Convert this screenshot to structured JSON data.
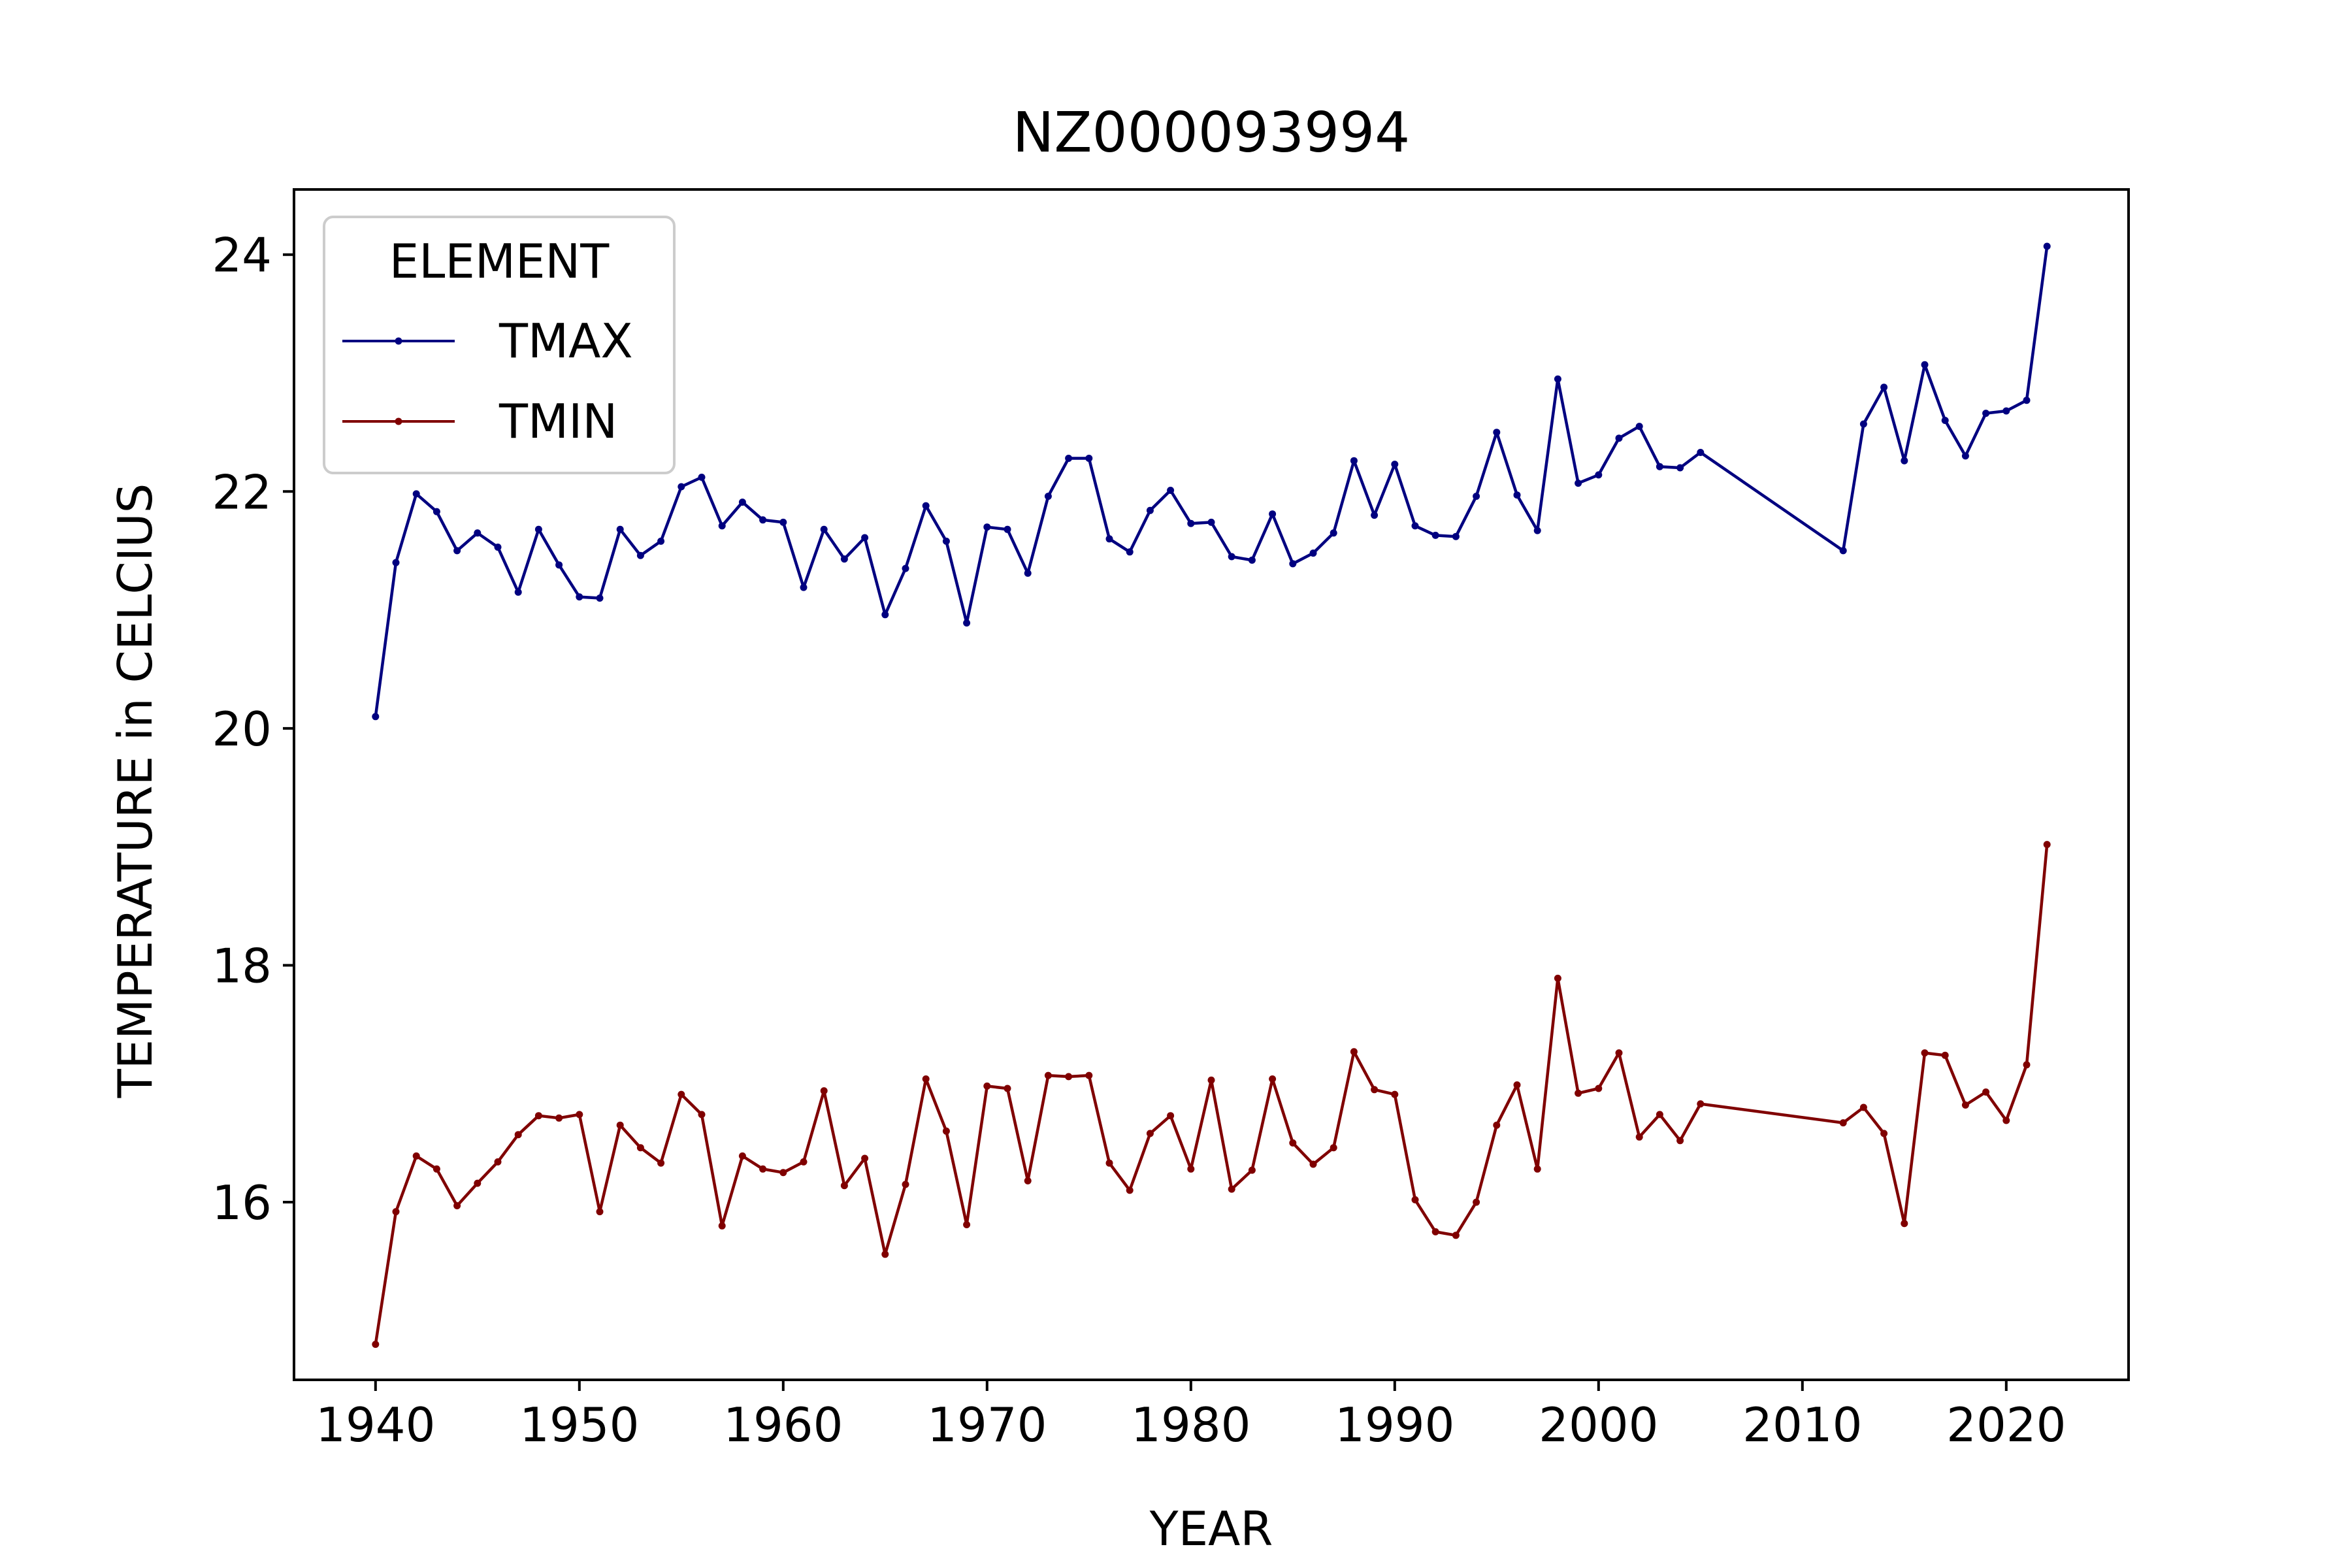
{
  "chart_data": {
    "type": "line",
    "title": "NZ000093994",
    "xlabel": "YEAR",
    "ylabel": "TEMPERATURE in CELCIUS",
    "xlim": [
      1936,
      2026
    ],
    "ylim": [
      14.5,
      24.55
    ],
    "xticks": [
      1940,
      1950,
      1960,
      1970,
      1980,
      1990,
      2000,
      2010,
      2020
    ],
    "yticks": [
      16,
      18,
      20,
      22,
      24
    ],
    "grid": false,
    "legend": {
      "title": "ELEMENT",
      "placement": "upper-left"
    },
    "x": [
      1940,
      1941,
      1942,
      1943,
      1944,
      1945,
      1946,
      1947,
      1948,
      1949,
      1950,
      1951,
      1952,
      1953,
      1954,
      1955,
      1956,
      1957,
      1958,
      1959,
      1960,
      1961,
      1962,
      1963,
      1964,
      1965,
      1966,
      1967,
      1968,
      1969,
      1970,
      1971,
      1972,
      1973,
      1974,
      1975,
      1976,
      1977,
      1978,
      1979,
      1980,
      1981,
      1982,
      1983,
      1984,
      1985,
      1986,
      1987,
      1988,
      1989,
      1990,
      1991,
      1992,
      1993,
      1994,
      1995,
      1996,
      1997,
      1998,
      1999,
      2000,
      2001,
      2002,
      2003,
      2004,
      2005,
      2012,
      2013,
      2014,
      2015,
      2016,
      2017,
      2018,
      2019,
      2020,
      2021,
      2022
    ],
    "series": [
      {
        "name": "TMAX",
        "color": "#000080",
        "values": [
          20.1,
          21.4,
          21.98,
          21.83,
          21.5,
          21.65,
          21.53,
          21.15,
          21.68,
          21.38,
          21.11,
          21.1,
          21.68,
          21.46,
          21.58,
          22.04,
          22.12,
          21.71,
          21.91,
          21.76,
          21.74,
          21.19,
          21.68,
          21.43,
          21.61,
          20.96,
          21.35,
          21.88,
          21.58,
          20.89,
          21.7,
          21.68,
          21.31,
          21.96,
          22.28,
          22.28,
          21.6,
          21.49,
          21.84,
          22.01,
          21.73,
          21.74,
          21.45,
          21.42,
          21.81,
          21.39,
          21.48,
          21.65,
          22.26,
          21.8,
          22.23,
          21.71,
          21.63,
          21.62,
          21.96,
          22.5,
          21.97,
          21.67,
          22.95,
          22.07,
          22.14,
          22.45,
          22.55,
          22.21,
          22.2,
          22.33,
          21.5,
          22.57,
          22.88,
          22.26,
          23.07,
          22.6,
          22.3,
          22.66,
          22.68,
          22.77,
          24.07
        ]
      },
      {
        "name": "TMIN",
        "color": "#800000",
        "values": [
          14.8,
          15.92,
          16.39,
          16.28,
          15.97,
          16.16,
          16.34,
          16.57,
          16.73,
          16.71,
          16.74,
          15.92,
          16.65,
          16.46,
          16.33,
          16.91,
          16.74,
          15.8,
          16.39,
          16.28,
          16.25,
          16.34,
          16.94,
          16.14,
          16.37,
          15.56,
          16.15,
          17.04,
          16.6,
          15.81,
          16.98,
          16.96,
          16.18,
          17.07,
          17.06,
          17.07,
          16.33,
          16.1,
          16.58,
          16.73,
          16.28,
          17.03,
          16.11,
          16.27,
          17.04,
          16.5,
          16.32,
          16.46,
          17.27,
          16.95,
          16.91,
          16.02,
          15.75,
          15.72,
          16.0,
          16.65,
          16.99,
          16.28,
          17.89,
          16.92,
          16.96,
          17.26,
          16.55,
          16.74,
          16.52,
          16.83,
          16.67,
          16.8,
          16.58,
          15.82,
          17.26,
          17.24,
          16.82,
          16.93,
          16.69,
          17.16,
          19.02
        ]
      }
    ]
  }
}
